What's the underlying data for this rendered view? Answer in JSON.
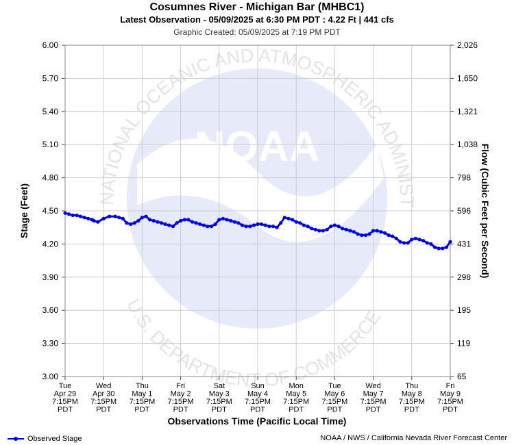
{
  "header": {
    "title": "Cosumnes River - Michigan Bar (MHBC1)",
    "subtitle": "Latest Observation - 05/09/2025 at 6:30 PM PDT : 4.22 Ft | 441 cfs",
    "created": "Graphic Created: 05/09/2025 at 7:19 PM PDT"
  },
  "footer": {
    "legend_label": "Observed Stage",
    "credit": "NOAA / NWS / California Nevada River Forecast Center"
  },
  "watermark": {
    "logo_text": "NOAA",
    "ring_text": "NATIONAL OCEANIC AND ATMOSPHERIC ADMINISTRATION",
    "bottom_text": "U.S. DEPARTMENT OF COMMERCE"
  },
  "chart_data": {
    "type": "line",
    "ylabel": "Stage (Feet)",
    "y2label": "Flow (Cubic Feet per Second)",
    "xlabel": "Observations Time (Pacific Local Time)",
    "ylim": [
      3.0,
      6.0
    ],
    "y_ticks": [
      "3.00",
      "3.30",
      "3.60",
      "3.90",
      "4.20",
      "4.50",
      "4.80",
      "5.10",
      "5.40",
      "5.70",
      "6.00"
    ],
    "y2_ticks": [
      "65",
      "119",
      "195",
      "298",
      "431",
      "596",
      "798",
      "1,038",
      "1,321",
      "1,650",
      "2,026"
    ],
    "x_ticks": [
      [
        "Tue",
        "Apr 29",
        "7:15PM",
        "PDT"
      ],
      [
        "Wed",
        "Apr 30",
        "7:15PM",
        "PDT"
      ],
      [
        "Thu",
        "May 1",
        "7:15PM",
        "PDT"
      ],
      [
        "Fri",
        "May 2",
        "7:15PM",
        "PDT"
      ],
      [
        "Sat",
        "May 3",
        "7:15PM",
        "PDT"
      ],
      [
        "Sun",
        "May 4",
        "7:15PM",
        "PDT"
      ],
      [
        "Mon",
        "May 5",
        "7:15PM",
        "PDT"
      ],
      [
        "Tue",
        "May 6",
        "7:15PM",
        "PDT"
      ],
      [
        "Wed",
        "May 7",
        "7:15PM",
        "PDT"
      ],
      [
        "Thu",
        "May 8",
        "7:15PM",
        "PDT"
      ],
      [
        "Fri",
        "May 9",
        "7:15PM",
        "PDT"
      ]
    ],
    "grid": true,
    "series": [
      {
        "name": "Observed Stage",
        "color": "#0000ee",
        "x": [
          0,
          0.1,
          0.2,
          0.3,
          0.4,
          0.5,
          0.6,
          0.7,
          0.75,
          0.85,
          1.0,
          1.15,
          1.3,
          1.4,
          1.5,
          1.6,
          1.7,
          1.8,
          1.9,
          2.0,
          2.1,
          2.2,
          2.3,
          2.4,
          2.5,
          2.6,
          2.7,
          2.8,
          2.9,
          3.0,
          3.1,
          3.2,
          3.3,
          3.4,
          3.5,
          3.6,
          3.7,
          3.8,
          3.9,
          4.0,
          4.1,
          4.2,
          4.3,
          4.4,
          4.5,
          4.6,
          4.7,
          4.8,
          4.9,
          5.0,
          5.1,
          5.2,
          5.3,
          5.4,
          5.5,
          5.6,
          5.7,
          5.8,
          5.9,
          6.0,
          6.1,
          6.2,
          6.3,
          6.4,
          6.5,
          6.6,
          6.7,
          6.8,
          6.9,
          7.0,
          7.1,
          7.2,
          7.3,
          7.4,
          7.5,
          7.6,
          7.7,
          7.8,
          7.9,
          8.0,
          8.1,
          8.2,
          8.3,
          8.4,
          8.5,
          8.6,
          8.7,
          8.8,
          8.9,
          9.0,
          9.1,
          9.2,
          9.3,
          9.4,
          9.5,
          9.6,
          9.7,
          9.8,
          9.9,
          10.0
        ],
        "values": [
          4.48,
          4.47,
          4.46,
          4.46,
          4.45,
          4.44,
          4.43,
          4.42,
          4.41,
          4.4,
          4.43,
          4.45,
          4.45,
          4.44,
          4.43,
          4.39,
          4.38,
          4.39,
          4.41,
          4.44,
          4.45,
          4.42,
          4.41,
          4.4,
          4.39,
          4.38,
          4.37,
          4.36,
          4.39,
          4.41,
          4.42,
          4.42,
          4.4,
          4.39,
          4.38,
          4.37,
          4.36,
          4.36,
          4.38,
          4.42,
          4.43,
          4.42,
          4.41,
          4.4,
          4.39,
          4.37,
          4.36,
          4.36,
          4.37,
          4.38,
          4.38,
          4.37,
          4.36,
          4.36,
          4.35,
          4.39,
          4.44,
          4.43,
          4.42,
          4.4,
          4.39,
          4.37,
          4.36,
          4.34,
          4.33,
          4.32,
          4.32,
          4.33,
          4.36,
          4.37,
          4.36,
          4.34,
          4.33,
          4.32,
          4.31,
          4.29,
          4.28,
          4.28,
          4.29,
          4.32,
          4.32,
          4.31,
          4.3,
          4.28,
          4.27,
          4.25,
          4.22,
          4.21,
          4.21,
          4.24,
          4.25,
          4.24,
          4.23,
          4.21,
          4.2,
          4.17,
          4.16,
          4.16,
          4.17,
          4.22
        ]
      }
    ]
  }
}
